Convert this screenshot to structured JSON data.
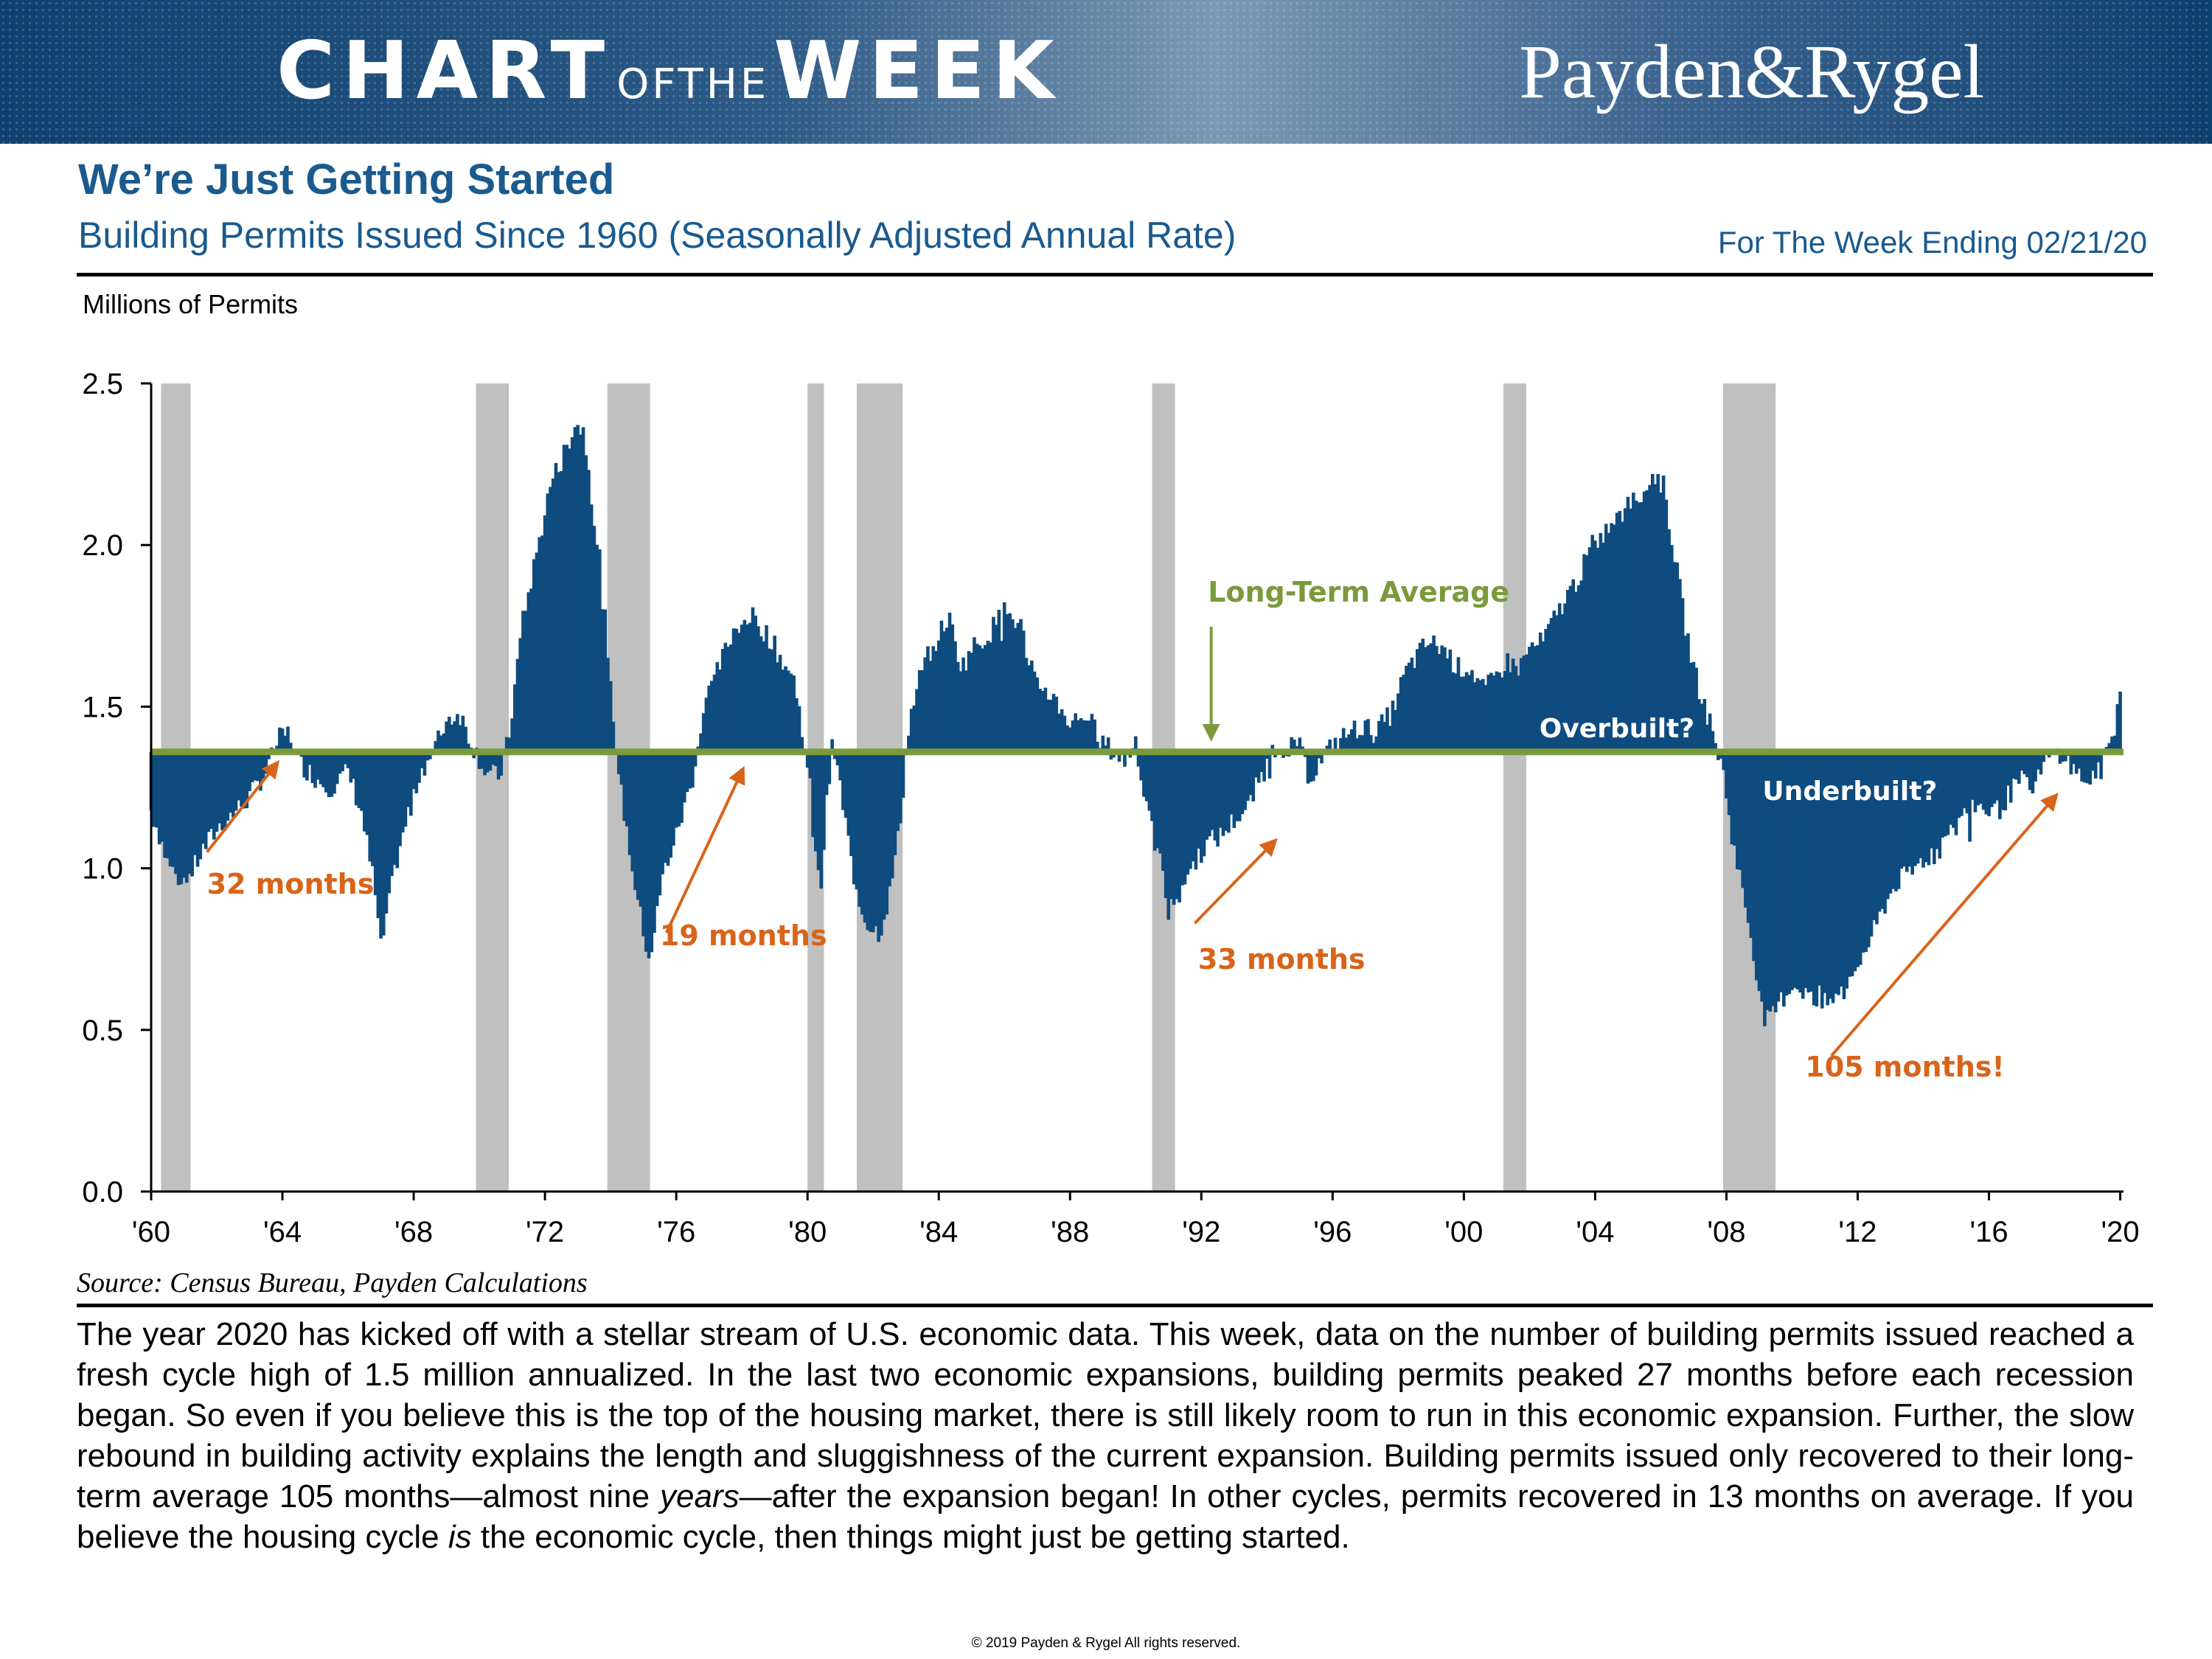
{
  "header": {
    "title_chart": "CHART",
    "title_ofthe": "OFTHE",
    "title_week": "WEEK",
    "logo": "Payden&Rygel",
    "headline": "We’re Just Getting Started",
    "subtitle": "Building Permits Issued Since 1960 (Seasonally Adjusted Annual Rate)",
    "date": "For The Week Ending 02/21/20"
  },
  "colors": {
    "banner": "#0f4170",
    "title_blue": "#1a5a8e",
    "bars": "#0e4b7e",
    "recession": "#c0c0c0",
    "average": "#7a9a3c",
    "arrows": "#d8641a"
  },
  "chart_data": {
    "type": "bar",
    "title": "Building Permits Issued Since 1960 (Seasonally Adjusted Annual Rate)",
    "ylabel": "Millions of Permits",
    "xlabel": "",
    "xlim": [
      1960.0,
      2020.1
    ],
    "ylim": [
      0,
      2.5
    ],
    "y_ticks": [
      "0.0",
      "0.5",
      "1.0",
      "1.5",
      "2.0",
      "2.5"
    ],
    "x_ticks": [
      "'60",
      "'64",
      "'68",
      "'72",
      "'76",
      "'80",
      "'84",
      "'88",
      "'92",
      "'96",
      "'00",
      "'04",
      "'08",
      "'12",
      "'16",
      "'20"
    ],
    "long_term_average": 1.36,
    "recessions": [
      [
        1960.3,
        1961.2
      ],
      [
        1969.9,
        1970.9
      ],
      [
        1973.9,
        1975.2
      ],
      [
        1980.0,
        1980.5
      ],
      [
        1981.5,
        1982.9
      ],
      [
        1990.5,
        1991.2
      ],
      [
        2001.2,
        2001.9
      ],
      [
        2007.9,
        2009.5
      ]
    ],
    "series_points": [
      [
        1960.0,
        1.18
      ],
      [
        1960.2,
        1.12
      ],
      [
        1960.5,
        1.02
      ],
      [
        1960.8,
        0.97
      ],
      [
        1961.2,
        0.98
      ],
      [
        1961.6,
        1.06
      ],
      [
        1962.0,
        1.12
      ],
      [
        1962.5,
        1.17
      ],
      [
        1963.0,
        1.22
      ],
      [
        1963.5,
        1.3
      ],
      [
        1963.9,
        1.4
      ],
      [
        1964.2,
        1.42
      ],
      [
        1964.5,
        1.33
      ],
      [
        1965.0,
        1.28
      ],
      [
        1965.5,
        1.25
      ],
      [
        1966.0,
        1.3
      ],
      [
        1966.4,
        1.18
      ],
      [
        1966.8,
        0.95
      ],
      [
        1967.0,
        0.75
      ],
      [
        1967.4,
        0.98
      ],
      [
        1967.8,
        1.15
      ],
      [
        1968.2,
        1.3
      ],
      [
        1968.6,
        1.36
      ],
      [
        1969.0,
        1.46
      ],
      [
        1969.4,
        1.48
      ],
      [
        1969.8,
        1.38
      ],
      [
        1970.2,
        1.3
      ],
      [
        1970.6,
        1.28
      ],
      [
        1970.9,
        1.4
      ],
      [
        1971.3,
        1.75
      ],
      [
        1971.8,
        2.0
      ],
      [
        1972.2,
        2.2
      ],
      [
        1972.6,
        2.28
      ],
      [
        1972.9,
        2.38
      ],
      [
        1973.2,
        2.35
      ],
      [
        1973.6,
        2.0
      ],
      [
        1973.9,
        1.65
      ],
      [
        1974.3,
        1.25
      ],
      [
        1974.7,
        0.98
      ],
      [
        1975.0,
        0.8
      ],
      [
        1975.2,
        0.72
      ],
      [
        1975.6,
        0.98
      ],
      [
        1976.0,
        1.1
      ],
      [
        1976.5,
        1.28
      ],
      [
        1976.9,
        1.52
      ],
      [
        1977.3,
        1.62
      ],
      [
        1977.8,
        1.75
      ],
      [
        1978.3,
        1.78
      ],
      [
        1978.8,
        1.72
      ],
      [
        1979.2,
        1.65
      ],
      [
        1979.6,
        1.58
      ],
      [
        1979.9,
        1.4
      ],
      [
        1980.2,
        1.08
      ],
      [
        1980.4,
        0.92
      ],
      [
        1980.6,
        1.22
      ],
      [
        1980.8,
        1.38
      ],
      [
        1981.0,
        1.25
      ],
      [
        1981.3,
        1.05
      ],
      [
        1981.6,
        0.88
      ],
      [
        1981.9,
        0.82
      ],
      [
        1982.2,
        0.8
      ],
      [
        1982.5,
        0.92
      ],
      [
        1982.8,
        1.12
      ],
      [
        1983.1,
        1.45
      ],
      [
        1983.5,
        1.62
      ],
      [
        1983.9,
        1.7
      ],
      [
        1984.3,
        1.78
      ],
      [
        1984.7,
        1.62
      ],
      [
        1985.0,
        1.68
      ],
      [
        1985.5,
        1.72
      ],
      [
        1986.0,
        1.8
      ],
      [
        1986.5,
        1.75
      ],
      [
        1986.9,
        1.58
      ],
      [
        1987.3,
        1.55
      ],
      [
        1987.7,
        1.5
      ],
      [
        1988.0,
        1.45
      ],
      [
        1988.5,
        1.48
      ],
      [
        1988.9,
        1.4
      ],
      [
        1989.3,
        1.36
      ],
      [
        1989.7,
        1.33
      ],
      [
        1990.0,
        1.4
      ],
      [
        1990.4,
        1.15
      ],
      [
        1990.8,
        1.0
      ],
      [
        1991.0,
        0.86
      ],
      [
        1991.4,
        0.95
      ],
      [
        1991.8,
        1.02
      ],
      [
        1992.2,
        1.08
      ],
      [
        1992.6,
        1.1
      ],
      [
        1993.0,
        1.15
      ],
      [
        1993.4,
        1.18
      ],
      [
        1993.8,
        1.28
      ],
      [
        1994.2,
        1.36
      ],
      [
        1994.6,
        1.38
      ],
      [
        1994.9,
        1.4
      ],
      [
        1995.3,
        1.28
      ],
      [
        1995.7,
        1.34
      ],
      [
        1996.0,
        1.38
      ],
      [
        1996.5,
        1.42
      ],
      [
        1996.9,
        1.44
      ],
      [
        1997.3,
        1.42
      ],
      [
        1997.8,
        1.48
      ],
      [
        1998.2,
        1.6
      ],
      [
        1998.6,
        1.66
      ],
      [
        1998.9,
        1.7
      ],
      [
        1999.4,
        1.68
      ],
      [
        1999.8,
        1.62
      ],
      [
        2000.2,
        1.62
      ],
      [
        2000.6,
        1.55
      ],
      [
        2000.9,
        1.58
      ],
      [
        2001.3,
        1.64
      ],
      [
        2001.7,
        1.62
      ],
      [
        2002.0,
        1.68
      ],
      [
        2002.4,
        1.7
      ],
      [
        2002.8,
        1.78
      ],
      [
        2003.2,
        1.85
      ],
      [
        2003.6,
        1.92
      ],
      [
        2003.9,
        2.0
      ],
      [
        2004.3,
        2.04
      ],
      [
        2004.7,
        2.08
      ],
      [
        2005.0,
        2.12
      ],
      [
        2005.4,
        2.16
      ],
      [
        2005.8,
        2.22
      ],
      [
        2006.1,
        2.18
      ],
      [
        2006.4,
        1.98
      ],
      [
        2006.8,
        1.72
      ],
      [
        2007.1,
        1.58
      ],
      [
        2007.5,
        1.45
      ],
      [
        2007.9,
        1.3
      ],
      [
        2008.2,
        1.08
      ],
      [
        2008.6,
        0.88
      ],
      [
        2008.9,
        0.7
      ],
      [
        2009.1,
        0.55
      ],
      [
        2009.3,
        0.52
      ],
      [
        2009.6,
        0.58
      ],
      [
        2010.0,
        0.64
      ],
      [
        2010.4,
        0.62
      ],
      [
        2010.8,
        0.57
      ],
      [
        2011.2,
        0.59
      ],
      [
        2011.6,
        0.62
      ],
      [
        2012.0,
        0.7
      ],
      [
        2012.4,
        0.78
      ],
      [
        2012.8,
        0.88
      ],
      [
        2013.2,
        0.96
      ],
      [
        2013.6,
        0.98
      ],
      [
        2013.9,
        1.02
      ],
      [
        2014.4,
        1.05
      ],
      [
        2014.8,
        1.1
      ],
      [
        2015.2,
        1.16
      ],
      [
        2015.6,
        1.2
      ],
      [
        2015.9,
        1.18
      ],
      [
        2016.3,
        1.18
      ],
      [
        2016.7,
        1.24
      ],
      [
        2017.0,
        1.27
      ],
      [
        2017.4,
        1.26
      ],
      [
        2017.8,
        1.34
      ],
      [
        2018.2,
        1.36
      ],
      [
        2018.6,
        1.3
      ],
      [
        2019.0,
        1.27
      ],
      [
        2019.4,
        1.3
      ],
      [
        2019.8,
        1.42
      ],
      [
        2020.0,
        1.55
      ]
    ],
    "annotations": {
      "long_term_average": "Long-Term Average",
      "overbuilt": "Overbuilt?",
      "underbuilt": "Underbuilt?",
      "arrows": [
        "32 months",
        "19 months",
        "33 months",
        "105 months!"
      ]
    }
  },
  "source": "Source: Census Bureau, Payden Calculations",
  "body": {
    "text1": "The year 2020 has kicked off with a stellar stream of U.S. economic data. This week, data on the number of building permits issued reached a fresh cycle high of 1.5 million annualized. In the last two economic expansions, building permits peaked 27 months before each recession began. So even if you believe this is the top of the housing market, there is still likely room to run in this economic expansion. Further, the slow rebound in building activity explains the length and sluggishness of the current expansion. Building permits issued only recovered to their long-term average 105 months—almost nine ",
    "em1": "years",
    "text2": "—after the expansion began! In other cycles, permits recovered in 13 months on average. If you believe the housing cycle ",
    "em2": "is",
    "text3": " the economic cycle, then things might just be getting started."
  },
  "copyright": "© 2019 Payden & Rygel All rights reserved."
}
